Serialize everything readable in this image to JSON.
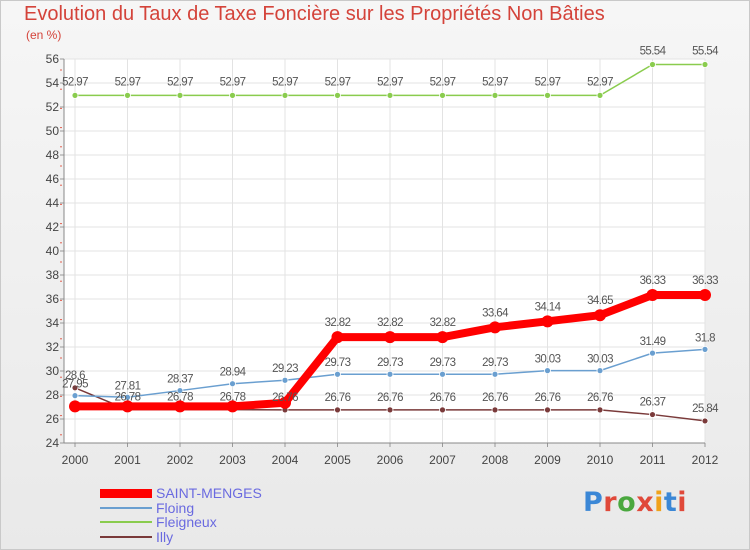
{
  "title": "Evolution du Taux de Taxe Foncière sur les Propriétés Non Bâties",
  "unit_label": "(en %)",
  "logo": {
    "text": "Proxiti",
    "letter_colors": [
      "#3b87d6",
      "#e0493a",
      "#4aa83f",
      "#e0493a",
      "#f0a21b",
      "#3b87d6",
      "#e0493a"
    ]
  },
  "chart_data": {
    "type": "line",
    "x": [
      "2000",
      "2001",
      "2002",
      "2003",
      "2004",
      "2005",
      "2006",
      "2007",
      "2008",
      "2009",
      "2010",
      "2011",
      "2012"
    ],
    "ylim": [
      24,
      56
    ],
    "yticks": [
      "24",
      "26",
      "28",
      "30",
      "32",
      "34",
      "36",
      "38",
      "40",
      "42",
      "44",
      "46",
      "48",
      "50",
      "52",
      "54",
      "56"
    ],
    "grid": true,
    "series": [
      {
        "name": "SAINT-MENGES",
        "color": "#ff0000",
        "values": [
          27.05,
          27.05,
          27.05,
          27.05,
          27.35,
          32.82,
          32.82,
          32.82,
          33.64,
          34.14,
          34.65,
          36.33,
          36.33
        ],
        "labels": [
          "",
          "",
          "",
          "",
          "",
          "32.82",
          "32.82",
          "32.82",
          "33.64",
          "34.14",
          "34.65",
          "36.33",
          "36.33"
        ]
      },
      {
        "name": "Floing",
        "color": "#6a9fd0",
        "values": [
          27.95,
          27.81,
          28.37,
          28.94,
          29.23,
          29.73,
          29.73,
          29.73,
          29.73,
          30.03,
          30.03,
          31.49,
          31.8
        ],
        "labels": [
          "27.95",
          "27.81",
          "28.37",
          "28.94",
          "29.23",
          "29.73",
          "29.73",
          "29.73",
          "29.73",
          "30.03",
          "30.03",
          "31.49",
          "31.8"
        ]
      },
      {
        "name": "Fleigneux",
        "color": "#8acc4e",
        "values": [
          52.97,
          52.97,
          52.97,
          52.97,
          52.97,
          52.97,
          52.97,
          52.97,
          52.97,
          52.97,
          52.97,
          55.54,
          55.54
        ],
        "labels": [
          "52.97",
          "52.97",
          "52.97",
          "52.97",
          "52.97",
          "52.97",
          "52.97",
          "52.97",
          "52.97",
          "52.97",
          "52.97",
          "55.54",
          "55.54"
        ]
      },
      {
        "name": "Illy",
        "color": "#7a3a3a",
        "values": [
          28.6,
          26.78,
          26.78,
          26.78,
          26.76,
          26.76,
          26.76,
          26.76,
          26.76,
          26.76,
          26.76,
          26.37,
          25.84
        ],
        "labels": [
          "28.6",
          "26.78",
          "26.78",
          "26.78",
          "26.76",
          "26.76",
          "26.76",
          "26.76",
          "26.76",
          "26.76",
          "26.76",
          "26.37",
          "25.84"
        ]
      }
    ]
  }
}
